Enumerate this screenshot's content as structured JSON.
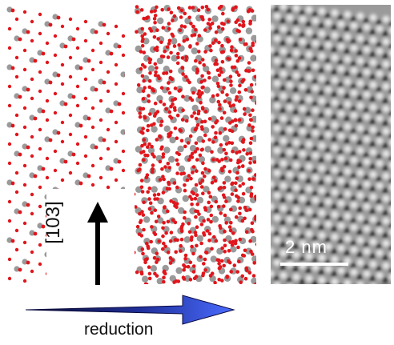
{
  "labels": {
    "direction": "[103]",
    "reduction": "reduction",
    "scale": "2  nm"
  },
  "colors": {
    "oxygen_red": "#e0161c",
    "metal_gray": "#9a9a9a",
    "arrow_black": "#000000",
    "gradient_arrow_start": "#0a0a2a",
    "gradient_arrow_end": "#3b5bf0",
    "tem_background": "#9a9a9a"
  },
  "icons": {
    "direction_arrow": "up-arrow-icon",
    "reduction_arrow": "right-gradient-arrow-icon"
  }
}
